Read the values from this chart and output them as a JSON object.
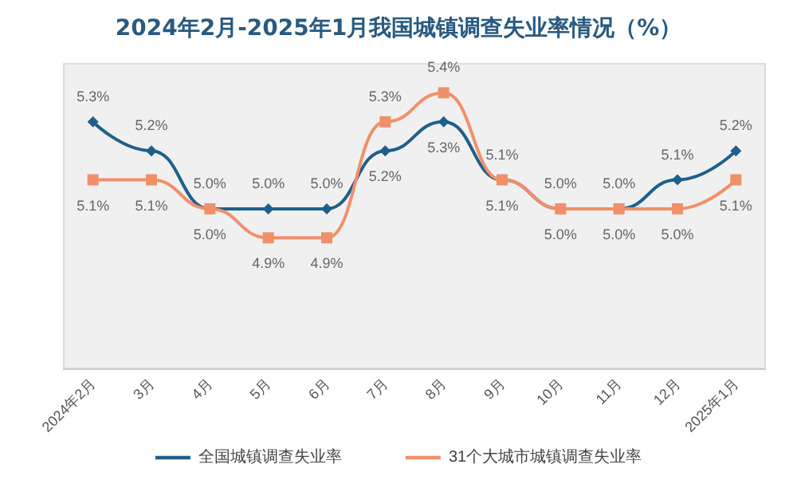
{
  "chart_data": {
    "type": "line",
    "title": "2024年2月-2025年1月我国城镇调查失业率情况（%）",
    "categories": [
      "2024年2月",
      "3月",
      "4月",
      "5月",
      "6月",
      "7月",
      "8月",
      "9月",
      "10月",
      "11月",
      "12月",
      "2025年1月"
    ],
    "series": [
      {
        "name": "全国城镇调查失业率",
        "color": "#1f5f8b",
        "marker": "diamond",
        "values": [
          5.3,
          5.2,
          5.0,
          5.0,
          5.0,
          5.2,
          5.3,
          5.1,
          5.0,
          5.0,
          5.1,
          5.2
        ],
        "value_labels": [
          "5.3%",
          "5.2%",
          "5.0%",
          "5.0%",
          "5.0%",
          "5.2%",
          "5.3%",
          "5.1%",
          "5.0%",
          "5.0%",
          "5.1%",
          "5.2%"
        ]
      },
      {
        "name": "31个大城市城镇调查失业率",
        "color": "#f0906a",
        "marker": "square",
        "values": [
          5.1,
          5.1,
          5.0,
          4.9,
          4.9,
          5.3,
          5.4,
          5.1,
          5.0,
          5.0,
          5.0,
          5.1
        ],
        "value_labels": [
          "5.1%",
          "5.1%",
          "5.0%",
          "4.9%",
          "4.9%",
          "5.3%",
          "5.4%",
          "5.1%",
          "5.0%",
          "5.0%",
          "5.0%",
          "5.1%"
        ]
      }
    ],
    "grid": false,
    "legend": "bottom",
    "line_style": "solid"
  }
}
